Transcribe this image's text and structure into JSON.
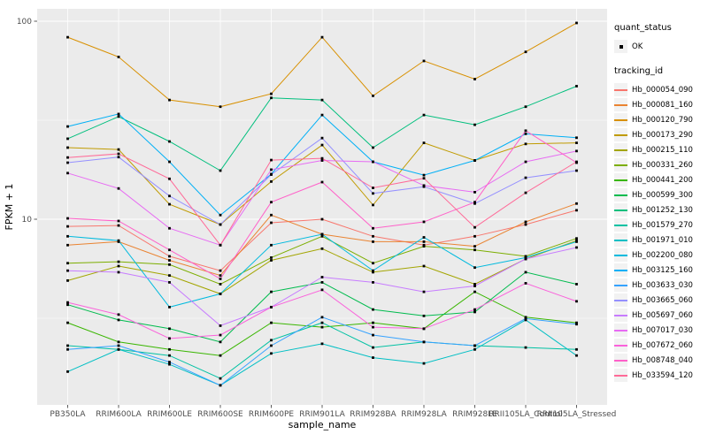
{
  "colors": {
    "panel_bg": "#EBEBEB",
    "grid": "#FFFFFF",
    "key_bg": "#F2F2F2",
    "point": "#000000",
    "axis_text": "#4D4D4D"
  },
  "legend": {
    "quant_title": "quant_status",
    "quant_items": [
      "OK"
    ],
    "tracking_title": "tracking_id"
  },
  "chart_data": {
    "type": "line",
    "title": "",
    "xlabel": "sample_name",
    "ylabel": "FPKM + 1",
    "y_scale": "log10",
    "y_major_ticks": [
      100,
      10
    ],
    "y_minor_gridlines": [
      31.623,
      3.1623
    ],
    "grid": true,
    "legend_position": "right",
    "point_marker": "black-square",
    "categories": [
      "PB350LA",
      "RRIM600LA",
      "RRIM600LE",
      "RRIM600SE",
      "RRIM600PE",
      "RRIM901LA",
      "RRIM928BA",
      "RRIM928LA",
      "RRIM928LE",
      "RRII105LA_Control",
      "RRII105LA_Stressed"
    ],
    "series": [
      {
        "name": "Hb_000054_090",
        "color": "#F8766D",
        "values": [
          9.2,
          9.3,
          6.5,
          5.5,
          9.6,
          10.0,
          8.2,
          7.4,
          8.2,
          9.4,
          11.1
        ]
      },
      {
        "name": "Hb_000081_160",
        "color": "#EA8331",
        "values": [
          7.4,
          7.7,
          6.2,
          5.2,
          10.5,
          8.4,
          7.7,
          7.7,
          7.3,
          9.7,
          12.0
        ]
      },
      {
        "name": "Hb_000120_790",
        "color": "#D89000",
        "values": [
          83,
          66,
          40,
          37,
          43,
          83,
          42,
          63,
          51,
          70,
          98
        ]
      },
      {
        "name": "Hb_000173_290",
        "color": "#C09B00",
        "values": [
          23,
          22.5,
          11.9,
          9.4,
          15.5,
          23.7,
          11.8,
          24.3,
          19.8,
          24.0,
          24.3
        ]
      },
      {
        "name": "Hb_000215_110",
        "color": "#A3A500",
        "values": [
          4.9,
          5.8,
          5.2,
          4.2,
          6.2,
          7.1,
          5.4,
          5.8,
          4.7,
          6.3,
          7.8
        ]
      },
      {
        "name": "Hb_000331_260",
        "color": "#7CAE00",
        "values": [
          6.0,
          6.1,
          5.9,
          4.7,
          6.4,
          8.2,
          6.0,
          7.3,
          7.0,
          6.5,
          8.0
        ]
      },
      {
        "name": "Hb_000441_200",
        "color": "#39B600",
        "values": [
          3.0,
          2.4,
          2.2,
          2.05,
          3.0,
          2.85,
          3.0,
          2.8,
          4.3,
          3.2,
          3.0
        ]
      },
      {
        "name": "Hb_000599_300",
        "color": "#00BB4E",
        "values": [
          3.7,
          3.1,
          2.8,
          2.4,
          4.3,
          4.8,
          3.5,
          3.25,
          3.4,
          5.4,
          4.7
        ]
      },
      {
        "name": "Hb_001252_130",
        "color": "#00BF7D",
        "values": [
          25.5,
          33,
          24.7,
          17.6,
          41,
          40,
          23,
          33.6,
          30,
          37,
          47
        ]
      },
      {
        "name": "Hb_001579_270",
        "color": "#00C1A3",
        "values": [
          2.3,
          2.2,
          2.05,
          1.57,
          2.45,
          3.0,
          2.25,
          2.4,
          2.3,
          2.25,
          2.2
        ]
      },
      {
        "name": "Hb_001971_010",
        "color": "#00BFC4",
        "values": [
          1.7,
          2.2,
          1.85,
          1.45,
          2.1,
          2.35,
          2.0,
          1.87,
          2.2,
          3.1,
          2.05
        ]
      },
      {
        "name": "Hb_002200_080",
        "color": "#00BADE",
        "values": [
          8.2,
          7.8,
          3.6,
          4.2,
          7.4,
          8.4,
          5.5,
          8.1,
          5.7,
          6.4,
          7.7
        ]
      },
      {
        "name": "Hb_003125_160",
        "color": "#00B0F6",
        "values": [
          29.4,
          34,
          19.5,
          10.5,
          16.9,
          33.6,
          19.5,
          16.7,
          19.8,
          27,
          25.8
        ]
      },
      {
        "name": "Hb_003633_030",
        "color": "#35A2FF",
        "values": [
          2.2,
          2.3,
          1.9,
          1.45,
          2.3,
          3.2,
          2.6,
          2.4,
          2.3,
          3.15,
          2.95
        ]
      },
      {
        "name": "Hb_003665_060",
        "color": "#9590FF",
        "values": [
          19.3,
          20.6,
          13.1,
          9.4,
          16.8,
          25.7,
          13.5,
          14.6,
          12.0,
          16.2,
          17.6
        ]
      },
      {
        "name": "Hb_005697_060",
        "color": "#C77CFF",
        "values": [
          5.5,
          5.4,
          4.8,
          2.9,
          3.6,
          5.1,
          4.8,
          4.3,
          4.6,
          6.3,
          7.2
        ]
      },
      {
        "name": "Hb_007017_030",
        "color": "#E76BF3",
        "values": [
          17.1,
          14.3,
          9.0,
          7.4,
          17.8,
          19.8,
          19.5,
          14.8,
          13.7,
          19.5,
          22.1
        ]
      },
      {
        "name": "Hb_007672_060",
        "color": "#FA62DB",
        "values": [
          3.8,
          3.3,
          2.5,
          2.6,
          3.6,
          4.4,
          2.85,
          2.8,
          3.5,
          4.75,
          3.85
        ]
      },
      {
        "name": "Hb_008748_040",
        "color": "#FF61C9",
        "values": [
          10.1,
          9.8,
          7.0,
          5.0,
          12.2,
          15.4,
          9.0,
          9.7,
          12.2,
          28,
          19.3
        ]
      },
      {
        "name": "Hb_033594_120",
        "color": "#FF6A98",
        "values": [
          20.5,
          21.4,
          16.0,
          7.4,
          19.9,
          20.3,
          14.4,
          16.1,
          9.1,
          13.6,
          19.5
        ]
      }
    ]
  }
}
